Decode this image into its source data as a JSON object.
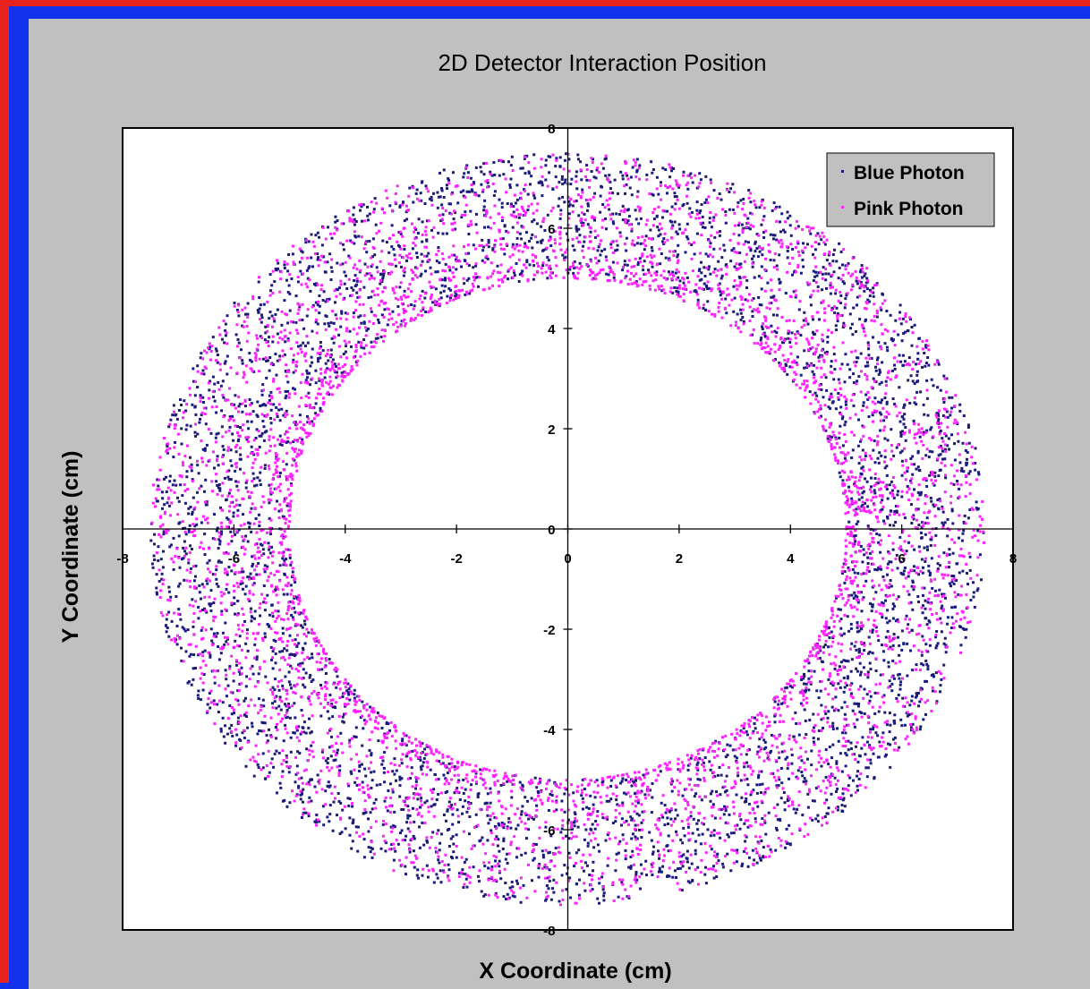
{
  "chart_data": {
    "type": "scatter",
    "title": "2D Detector Interaction Position",
    "xlabel": "X Coordinate (cm)",
    "ylabel": "Y Coordinate (cm)",
    "xlim": [
      -8,
      8
    ],
    "ylim": [
      -8,
      8
    ],
    "xticks": [
      "-8",
      "-6",
      "-4",
      "-2",
      "0",
      "2",
      "4",
      "6",
      "8"
    ],
    "yticks": [
      "8",
      "6",
      "4",
      "2",
      "0",
      "-2",
      "-4",
      "-6",
      "-8"
    ],
    "legend_position": "top-right",
    "grid": false,
    "distribution": {
      "shape": "annulus",
      "center": [
        0,
        0
      ],
      "inner_radius": 5,
      "outer_radius": 7.5
    },
    "series": [
      {
        "name": "Blue Photon",
        "color": "#1a1a7a",
        "marker": "square",
        "count": 4200
      },
      {
        "name": "Pink Photon",
        "color": "#ff22ff",
        "marker": "square",
        "count": 4200
      }
    ]
  },
  "colors": {
    "outer_frame": "#e8221c",
    "inner_frame": "#1133ee",
    "chart_background": "#c0c0c0",
    "plot_background": "#ffffff"
  }
}
